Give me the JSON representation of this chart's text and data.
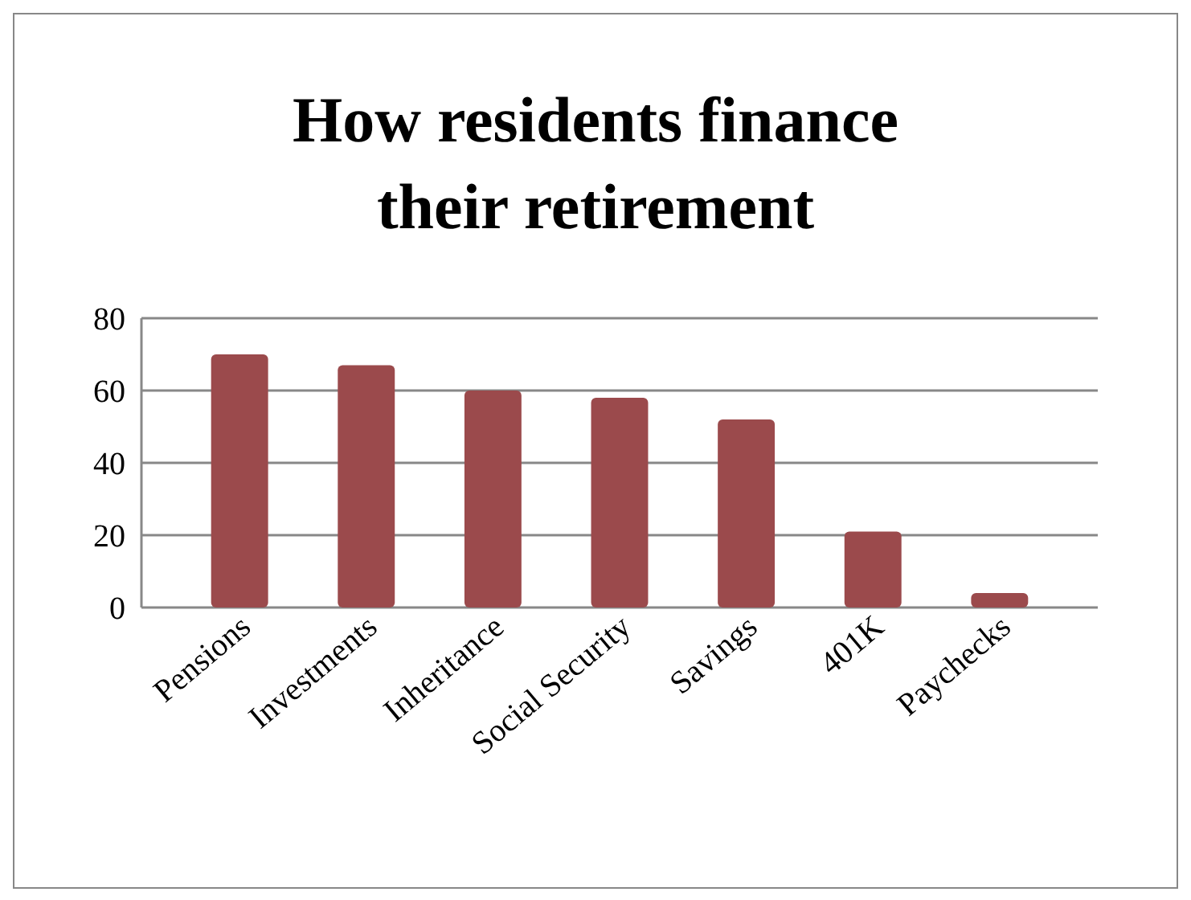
{
  "chart_data": {
    "type": "bar",
    "title": "How residents finance their retirement",
    "categories": [
      "Pensions",
      "Investments",
      "Inheritance",
      "Social Security",
      "Savings",
      "401K",
      "Paychecks"
    ],
    "values": [
      70,
      67,
      60,
      58,
      52,
      21,
      4
    ],
    "color": "#9b4a4c",
    "ylim": [
      0,
      80
    ],
    "yticks": [
      0,
      20,
      40,
      60,
      80
    ],
    "grid": "y"
  }
}
